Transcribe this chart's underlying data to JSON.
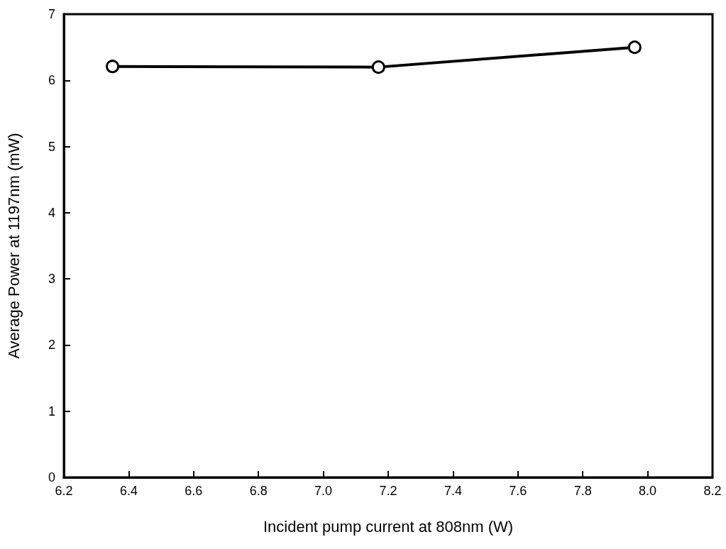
{
  "chart_data": {
    "type": "line",
    "xlabel": "Incident pump current at 808nm (W)",
    "ylabel": "Average Power at 1197nm (mW)",
    "x": [
      6.35,
      7.17,
      7.96
    ],
    "series": [
      {
        "color": "#000000",
        "values": [
          6.21,
          6.2,
          6.5
        ]
      }
    ],
    "xlim": [
      6.2,
      8.2
    ],
    "xticks": [
      {
        "value": 6.2,
        "label": "6.2"
      },
      {
        "value": 6.4,
        "label": "6.4"
      },
      {
        "value": 6.6,
        "label": "6.6"
      },
      {
        "value": 6.8,
        "label": "6.8"
      },
      {
        "value": 7,
        "label": "7.0"
      },
      {
        "value": 7.2,
        "label": "7.2"
      },
      {
        "value": 7.4,
        "label": "7.4"
      },
      {
        "value": 7.6,
        "label": "7.6"
      },
      {
        "value": 7.8,
        "label": "7.8"
      },
      {
        "value": 8,
        "label": "8.0"
      },
      {
        "value": 8.2,
        "label": "8.2"
      }
    ],
    "ylim": [
      0,
      7
    ],
    "yticks": [
      0,
      1,
      2,
      3,
      4,
      5,
      6,
      7
    ],
    "grid": false,
    "marker": "circle",
    "line_style": "solid"
  }
}
